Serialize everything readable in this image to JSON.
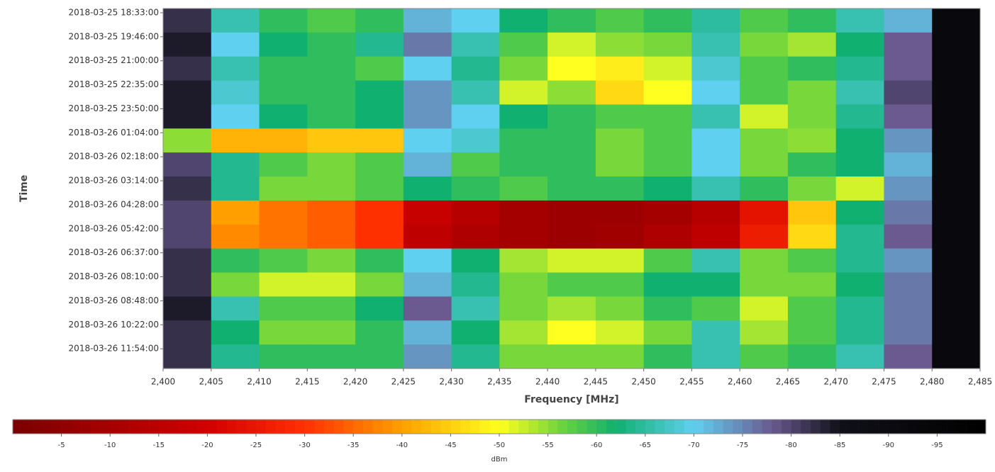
{
  "chart_data": {
    "type": "heatmap",
    "x_label": "Frequency [MHz]",
    "y_label": "Time",
    "colorbar_label": "dBm",
    "xlim": [
      2400,
      2485
    ],
    "xticks": [
      {
        "value": 2400,
        "label": "2,400"
      },
      {
        "value": 2405,
        "label": "2,405"
      },
      {
        "value": 2410,
        "label": "2,410"
      },
      {
        "value": 2415,
        "label": "2,415"
      },
      {
        "value": 2420,
        "label": "2,420"
      },
      {
        "value": 2425,
        "label": "2,425"
      },
      {
        "value": 2430,
        "label": "2,430"
      },
      {
        "value": 2435,
        "label": "2,435"
      },
      {
        "value": 2440,
        "label": "2,440"
      },
      {
        "value": 2445,
        "label": "2,445"
      },
      {
        "value": 2450,
        "label": "2,450"
      },
      {
        "value": 2455,
        "label": "2,455"
      },
      {
        "value": 2460,
        "label": "2,460"
      },
      {
        "value": 2465,
        "label": "2,465"
      },
      {
        "value": 2470,
        "label": "2,470"
      },
      {
        "value": 2475,
        "label": "2,475"
      },
      {
        "value": 2480,
        "label": "2,480"
      },
      {
        "value": 2485,
        "label": "2,485"
      }
    ],
    "bins": [
      2400,
      2405,
      2410,
      2415,
      2420,
      2425,
      2430,
      2435,
      2440,
      2445,
      2450,
      2455,
      2460,
      2465,
      2470,
      2475,
      2480,
      2485
    ],
    "categories": [
      "2018-03-25 18:33:00",
      "2018-03-25 19:46:00",
      "2018-03-25 21:00:00",
      "2018-03-25 22:35:00",
      "2018-03-25 23:50:00",
      "2018-03-26 01:04:00",
      "2018-03-26 02:18:00",
      "2018-03-26 03:14:00",
      "2018-03-26 04:28:00",
      "2018-03-26 05:42:00",
      "2018-03-26 06:37:00",
      "2018-03-26 08:10:00",
      "2018-03-26 08:48:00",
      "2018-03-26 10:22:00",
      "2018-03-26 11:54:00"
    ],
    "values": [
      [
        -82,
        -66,
        -60,
        -58,
        -60,
        -72,
        -70,
        -62,
        -60,
        -58,
        -60,
        -65,
        -58,
        -60,
        -66,
        -72,
        -92
      ],
      [
        -84,
        -70,
        -62,
        -60,
        -64,
        -76,
        -66,
        -58,
        -52,
        -55,
        -56,
        -66,
        -56,
        -54,
        -62,
        -78,
        -92
      ],
      [
        -82,
        -66,
        -60,
        -60,
        -58,
        -70,
        -64,
        -56,
        -50,
        -48,
        -52,
        -68,
        -58,
        -60,
        -64,
        -78,
        -92
      ],
      [
        -84,
        -68,
        -60,
        -60,
        -62,
        -74,
        -66,
        -52,
        -55,
        -46,
        -50,
        -70,
        -58,
        -56,
        -66,
        -80,
        -92
      ],
      [
        -84,
        -70,
        -62,
        -60,
        -62,
        -74,
        -70,
        -62,
        -60,
        -58,
        -58,
        -66,
        -52,
        -56,
        -64,
        -78,
        -92
      ],
      [
        -55,
        -42,
        -42,
        -44,
        -44,
        -70,
        -68,
        -60,
        -60,
        -56,
        -58,
        -70,
        -56,
        -55,
        -62,
        -74,
        -92
      ],
      [
        -80,
        -64,
        -58,
        -56,
        -58,
        -72,
        -58,
        -60,
        -60,
        -56,
        -58,
        -70,
        -56,
        -60,
        -62,
        -72,
        -92
      ],
      [
        -82,
        -64,
        -56,
        -56,
        -58,
        -62,
        -60,
        -58,
        -60,
        -60,
        -62,
        -66,
        -60,
        -56,
        -52,
        -74,
        -92
      ],
      [
        -80,
        -40,
        -36,
        -34,
        -30,
        -18,
        -14,
        -10,
        -8,
        -8,
        -10,
        -14,
        -24,
        -44,
        -62,
        -76,
        -92
      ],
      [
        -80,
        -38,
        -36,
        -34,
        -30,
        -16,
        -12,
        -10,
        -8,
        -9,
        -12,
        -16,
        -26,
        -46,
        -64,
        -78,
        -92
      ],
      [
        -82,
        -60,
        -58,
        -56,
        -60,
        -70,
        -62,
        -54,
        -52,
        -52,
        -58,
        -66,
        -56,
        -58,
        -64,
        -74,
        -92
      ],
      [
        -82,
        -56,
        -52,
        -52,
        -56,
        -72,
        -64,
        -56,
        -58,
        -58,
        -62,
        -62,
        -56,
        -56,
        -62,
        -76,
        -92
      ],
      [
        -84,
        -66,
        -58,
        -58,
        -62,
        -78,
        -66,
        -56,
        -54,
        -56,
        -60,
        -58,
        -52,
        -58,
        -64,
        -76,
        -92
      ],
      [
        -82,
        -62,
        -56,
        -56,
        -60,
        -72,
        -62,
        -54,
        -50,
        -52,
        -56,
        -66,
        -54,
        -58,
        -64,
        -76,
        -92
      ],
      [
        -82,
        -64,
        -60,
        -60,
        -60,
        -74,
        -64,
        -56,
        -56,
        -56,
        -60,
        -66,
        -58,
        -60,
        -66,
        -78,
        -92
      ]
    ],
    "clim": [
      0,
      -100
    ],
    "cticks": [
      -5,
      -10,
      -15,
      -20,
      -25,
      -30,
      -35,
      -40,
      -45,
      -50,
      -55,
      -60,
      -65,
      -70,
      -75,
      -80,
      -85,
      -90,
      -95
    ],
    "colorscale": [
      [
        0,
        "#7a0000"
      ],
      [
        -20,
        "#d00000"
      ],
      [
        -30,
        "#ff3000"
      ],
      [
        -40,
        "#ffa000"
      ],
      [
        -50,
        "#ffff20"
      ],
      [
        -57,
        "#60d040"
      ],
      [
        -62,
        "#10b070"
      ],
      [
        -70,
        "#60d0f0"
      ],
      [
        -78,
        "#6a5a90"
      ],
      [
        -85,
        "#101018"
      ],
      [
        -100,
        "#000000"
      ]
    ]
  }
}
